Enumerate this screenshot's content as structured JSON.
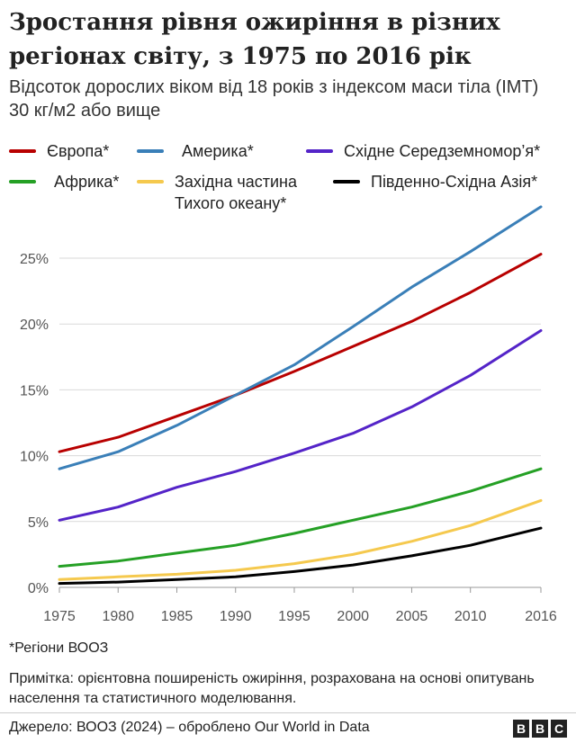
{
  "header": {
    "title": "Зростання рівня ожиріння в різних регіонах світу, з 1975 по 2016 рік",
    "subtitle": "Відсоток дорослих віком від 18 років з індексом маси тіла (ІМТ) 30 кг/м2 або вище"
  },
  "legend": [
    {
      "label": "Європа*",
      "color": "#b80000"
    },
    {
      "label": "Америка*",
      "color": "#3a7fb8"
    },
    {
      "label": "Східне Середземномор’я*",
      "color": "#5424c8"
    },
    {
      "label": "Африка*",
      "color": "#25a025"
    },
    {
      "label": "Західна частина Тихого океану*",
      "color": "#f5c94e"
    },
    {
      "label": "Південно-Східна Азія*",
      "color": "#000000"
    }
  ],
  "chart_data": {
    "type": "line",
    "title": "Зростання рівня ожиріння в різних регіонах світу, з 1975 по 2016 рік",
    "xlabel": "",
    "ylabel": "",
    "xlim": [
      1975,
      2016
    ],
    "ylim": [
      0,
      28
    ],
    "x_ticks": [
      "1975",
      "1980",
      "1985",
      "1990",
      "1995",
      "2000",
      "2005",
      "2010",
      "2016"
    ],
    "y_ticks": [
      "0%",
      "5%",
      "10%",
      "15%",
      "20%",
      "25%"
    ],
    "grid": "horizontal",
    "legend_position": "top",
    "series": [
      {
        "name": "Європа*",
        "color": "#b80000",
        "points": [
          [
            1975,
            10.3
          ],
          [
            1980,
            11.4
          ],
          [
            1985,
            13.0
          ],
          [
            1990,
            14.6
          ],
          [
            1995,
            16.4
          ],
          [
            2000,
            18.3
          ],
          [
            2005,
            20.2
          ],
          [
            2010,
            22.4
          ],
          [
            2016,
            25.3
          ]
        ]
      },
      {
        "name": "Америка*",
        "color": "#3a7fb8",
        "points": [
          [
            1975,
            9.0
          ],
          [
            1980,
            10.3
          ],
          [
            1985,
            12.3
          ],
          [
            1990,
            14.6
          ],
          [
            1995,
            16.9
          ],
          [
            2000,
            19.8
          ],
          [
            2005,
            22.8
          ],
          [
            2010,
            25.5
          ],
          [
            2016,
            28.9
          ]
        ]
      },
      {
        "name": "Східне Середземномор’я*",
        "color": "#5424c8",
        "points": [
          [
            1975,
            5.1
          ],
          [
            1980,
            6.1
          ],
          [
            1985,
            7.6
          ],
          [
            1990,
            8.8
          ],
          [
            1995,
            10.2
          ],
          [
            2000,
            11.7
          ],
          [
            2005,
            13.7
          ],
          [
            2010,
            16.1
          ],
          [
            2016,
            19.5
          ]
        ]
      },
      {
        "name": "Африка*",
        "color": "#25a025",
        "points": [
          [
            1975,
            1.6
          ],
          [
            1980,
            2.0
          ],
          [
            1985,
            2.6
          ],
          [
            1990,
            3.2
          ],
          [
            1995,
            4.1
          ],
          [
            2000,
            5.1
          ],
          [
            2005,
            6.1
          ],
          [
            2010,
            7.3
          ],
          [
            2016,
            9.0
          ]
        ]
      },
      {
        "name": "Західна частина Тихого океану*",
        "color": "#f5c94e",
        "points": [
          [
            1975,
            0.6
          ],
          [
            1980,
            0.8
          ],
          [
            1985,
            1.0
          ],
          [
            1990,
            1.3
          ],
          [
            1995,
            1.8
          ],
          [
            2000,
            2.5
          ],
          [
            2005,
            3.5
          ],
          [
            2010,
            4.7
          ],
          [
            2016,
            6.6
          ]
        ]
      },
      {
        "name": "Південно-Східна Азія*",
        "color": "#000000",
        "points": [
          [
            1975,
            0.3
          ],
          [
            1980,
            0.4
          ],
          [
            1985,
            0.6
          ],
          [
            1990,
            0.8
          ],
          [
            1995,
            1.2
          ],
          [
            2000,
            1.7
          ],
          [
            2005,
            2.4
          ],
          [
            2010,
            3.2
          ],
          [
            2016,
            4.5
          ]
        ]
      }
    ]
  },
  "footer": {
    "footnote": "*Регіони ВООЗ",
    "note": "Примітка: орієнтовна поширеність ожиріння, розрахована на основі опитувань населення та статистичного моделювання.",
    "source": "Джерело: ВООЗ (2024) – оброблено Our World in Data",
    "logo_letters": [
      "B",
      "B",
      "C"
    ]
  }
}
